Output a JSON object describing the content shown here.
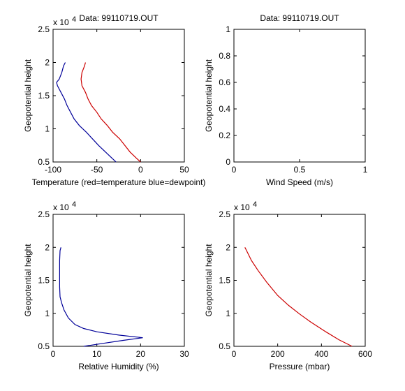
{
  "chart_data": [
    {
      "type": "line",
      "title": "Data: 99110719.OUT",
      "xlabel": "Temperature (red=temperature blue=dewpoint)",
      "ylabel": "Geopotential height",
      "xlim": [
        -100,
        50
      ],
      "ylim": [
        5000,
        25000
      ],
      "x_ticks": [
        "-100",
        "-50",
        "0",
        "50"
      ],
      "y_ticks": [
        "0.5",
        "1",
        "1.5",
        "2",
        "2.5"
      ],
      "y_multiplier": "x 10",
      "y_multiplier_exp": "4",
      "series": [
        {
          "color": "#cc0000",
          "points": [
            [
              0,
              5000
            ],
            [
              -5,
              5600
            ],
            [
              -12,
              6500
            ],
            [
              -18,
              7500
            ],
            [
              -24,
              8500
            ],
            [
              -32,
              9500
            ],
            [
              -38,
              10500
            ],
            [
              -45,
              11500
            ],
            [
              -50,
              12500
            ],
            [
              -56,
              13500
            ],
            [
              -60,
              14500
            ],
            [
              -63,
              15500
            ],
            [
              -67,
              16500
            ],
            [
              -68,
              17500
            ],
            [
              -67,
              18500
            ],
            [
              -64,
              19500
            ],
            [
              -63,
              20000
            ]
          ]
        },
        {
          "color": "#000099",
          "points": [
            [
              -28,
              5000
            ],
            [
              -32,
              5500
            ],
            [
              -40,
              6500
            ],
            [
              -48,
              7500
            ],
            [
              -55,
              8500
            ],
            [
              -62,
              9500
            ],
            [
              -70,
              10500
            ],
            [
              -76,
              11500
            ],
            [
              -80,
              12500
            ],
            [
              -84,
              13500
            ],
            [
              -87,
              14500
            ],
            [
              -91,
              15500
            ],
            [
              -95,
              16500
            ],
            [
              -96,
              17000
            ],
            [
              -93,
              17500
            ],
            [
              -90,
              18500
            ],
            [
              -88,
              19500
            ],
            [
              -86,
              20000
            ]
          ]
        }
      ]
    },
    {
      "type": "line",
      "title": "Data: 99110719.OUT",
      "xlabel": "Wind Speed (m/s)",
      "ylabel": "Geopotential height",
      "xlim": [
        0,
        1
      ],
      "ylim": [
        0,
        1
      ],
      "x_ticks": [
        "0",
        "0.5",
        "1"
      ],
      "y_ticks": [
        "0",
        "0.2",
        "0.4",
        "0.6",
        "0.8",
        "1"
      ],
      "series": []
    },
    {
      "type": "line",
      "title": "",
      "xlabel": "Relative Humidity (%)",
      "ylabel": "Geopotential height",
      "xlim": [
        0,
        30
      ],
      "ylim": [
        5000,
        25000
      ],
      "x_ticks": [
        "0",
        "10",
        "20",
        "30"
      ],
      "y_ticks": [
        "0.5",
        "1",
        "1.5",
        "2",
        "2.5"
      ],
      "y_multiplier": "x 10",
      "y_multiplier_exp": "4",
      "series": [
        {
          "color": "#000099",
          "points": [
            [
              7,
              5000
            ],
            [
              11,
              5400
            ],
            [
              16,
              5900
            ],
            [
              20.5,
              6300
            ],
            [
              15,
              6700
            ],
            [
              10,
              7200
            ],
            [
              7,
              7700
            ],
            [
              5,
              8300
            ],
            [
              3.5,
              9300
            ],
            [
              2.5,
              10500
            ],
            [
              2,
              11500
            ],
            [
              1.6,
              12500
            ],
            [
              1.5,
              14000
            ],
            [
              1.5,
              16000
            ],
            [
              1.5,
              18000
            ],
            [
              1.6,
              19500
            ],
            [
              1.8,
              20000
            ]
          ]
        }
      ]
    },
    {
      "type": "line",
      "title": "",
      "xlabel": "Pressure (mbar)",
      "ylabel": "Geopotential height",
      "xlim": [
        0,
        600
      ],
      "ylim": [
        5000,
        25000
      ],
      "x_ticks": [
        "0",
        "200",
        "400",
        "600"
      ],
      "y_ticks": [
        "0.5",
        "1",
        "1.5",
        "2",
        "2.5"
      ],
      "y_multiplier": "x 10",
      "y_multiplier_exp": "4",
      "series": [
        {
          "color": "#cc0000",
          "points": [
            [
              540,
              5000
            ],
            [
              480,
              6000
            ],
            [
              420,
              7200
            ],
            [
              350,
              8700
            ],
            [
              300,
              9900
            ],
            [
              250,
              11200
            ],
            [
              200,
              12700
            ],
            [
              150,
              14700
            ],
            [
              110,
              16500
            ],
            [
              80,
              18000
            ],
            [
              55,
              19700
            ],
            [
              50,
              20000
            ]
          ]
        }
      ]
    }
  ]
}
